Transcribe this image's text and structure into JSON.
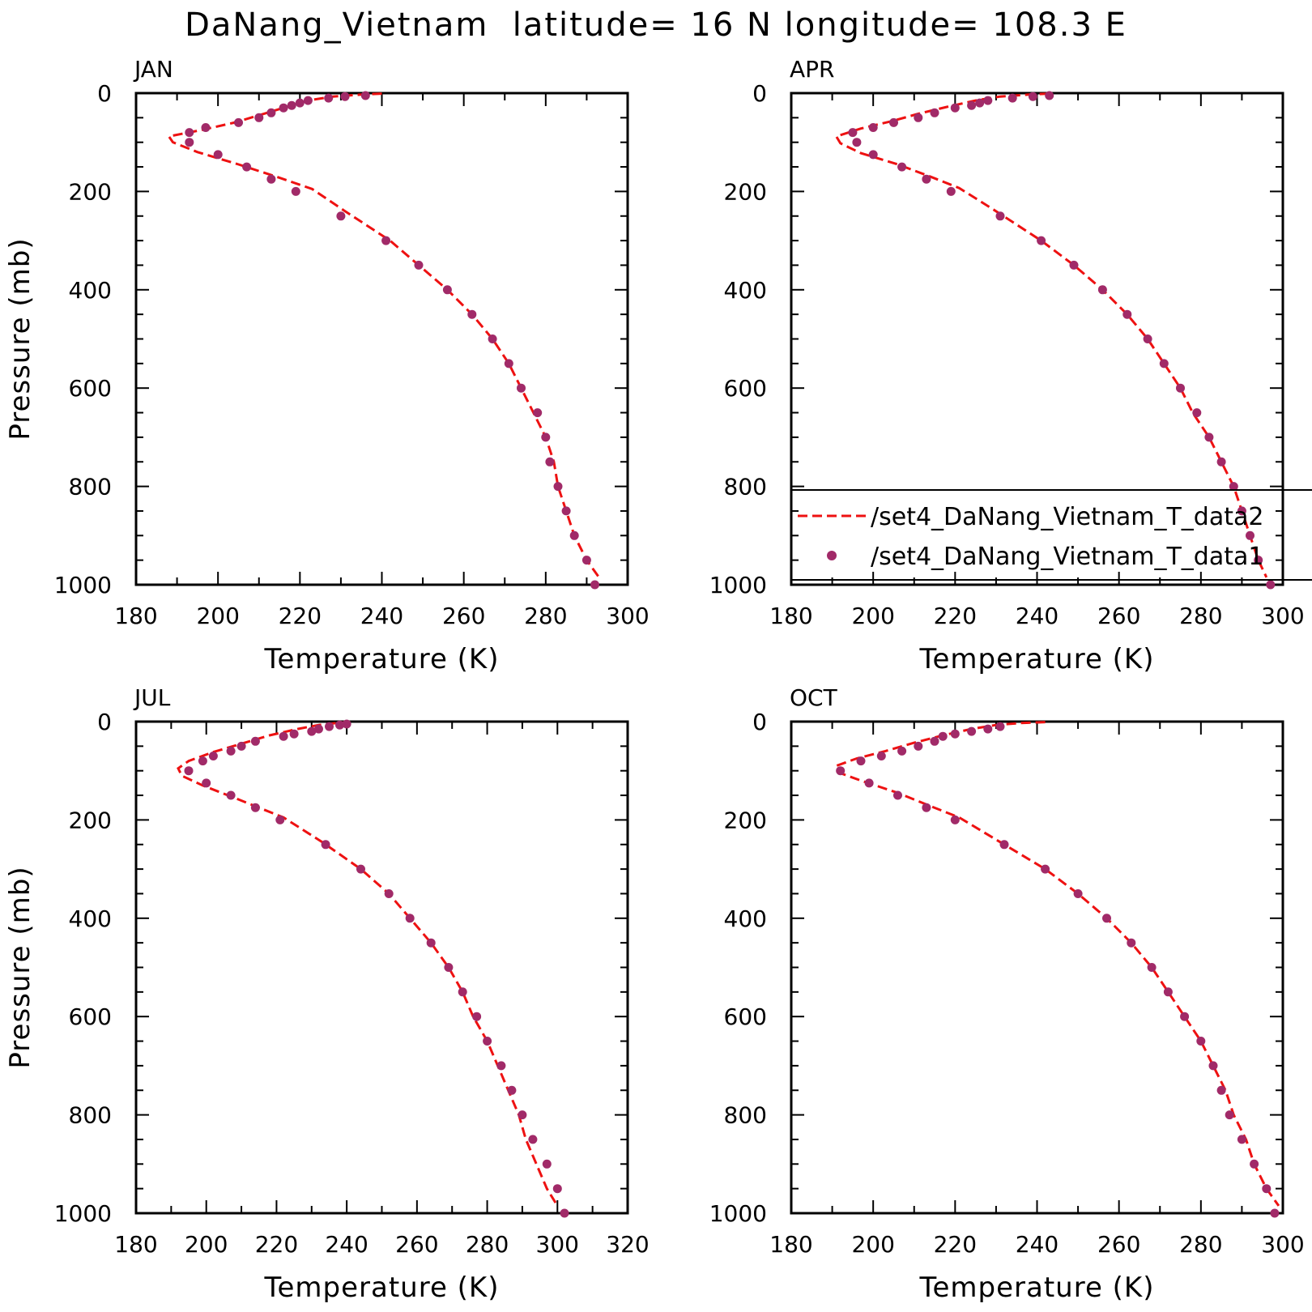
{
  "figure": {
    "title": "DaNang_Vietnam  latitude= 16 N longitude= 108.3 E",
    "colors": {
      "model_line": "#ee1111",
      "obs_marker": "#a12a68",
      "axes": "#000000"
    }
  },
  "legend": {
    "entries": [
      {
        "label": "/set4_DaNang_Vietnam_T_data2",
        "style": "dashed-line"
      },
      {
        "label": "/set4_DaNang_Vietnam_T_data1",
        "style": "marker"
      }
    ]
  },
  "chart_data": [
    {
      "type": "line",
      "panel": "JAN",
      "xlabel": "Temperature (K)",
      "ylabel": "Pressure (mb)",
      "xlim": [
        180,
        300
      ],
      "ylim": [
        1000,
        0
      ],
      "xticks": [
        180,
        200,
        220,
        240,
        260,
        280,
        300
      ],
      "yticks": [
        0,
        200,
        400,
        600,
        800,
        1000
      ],
      "legend": false,
      "series": [
        {
          "style": "dashed-line",
          "points": [
            [
              240,
              1
            ],
            [
              235,
              3
            ],
            [
              228,
              7
            ],
            [
              222,
              15
            ],
            [
              216,
              30
            ],
            [
              210,
              45
            ],
            [
              204,
              60
            ],
            [
              196,
              75
            ],
            [
              188,
              88
            ],
            [
              189,
              100
            ],
            [
              195,
              120
            ],
            [
              205,
              145
            ],
            [
              215,
              172
            ],
            [
              223,
              195
            ],
            [
              231,
              240
            ],
            [
              242,
              300
            ],
            [
              249,
              350
            ],
            [
              256,
              400
            ],
            [
              262,
              450
            ],
            [
              267,
              500
            ],
            [
              271,
              550
            ],
            [
              274,
              600
            ],
            [
              277,
              650
            ],
            [
              280,
              700
            ],
            [
              282,
              750
            ],
            [
              283,
              800
            ],
            [
              285,
              850
            ],
            [
              287,
              900
            ],
            [
              290,
              950
            ],
            [
              293,
              985
            ]
          ]
        },
        {
          "style": "marker",
          "points": [
            [
              236,
              5
            ],
            [
              231,
              7
            ],
            [
              227,
              10
            ],
            [
              222,
              15
            ],
            [
              220,
              20
            ],
            [
              218,
              25
            ],
            [
              216,
              30
            ],
            [
              213,
              40
            ],
            [
              210,
              50
            ],
            [
              205,
              60
            ],
            [
              197,
              70
            ],
            [
              193,
              80
            ],
            [
              193,
              100
            ],
            [
              200,
              125
            ],
            [
              207,
              150
            ],
            [
              213,
              175
            ],
            [
              219,
              200
            ],
            [
              230,
              250
            ],
            [
              241,
              300
            ],
            [
              249,
              350
            ],
            [
              256,
              400
            ],
            [
              262,
              450
            ],
            [
              267,
              500
            ],
            [
              271,
              550
            ],
            [
              274,
              600
            ],
            [
              278,
              650
            ],
            [
              280,
              700
            ],
            [
              281,
              750
            ],
            [
              283,
              800
            ],
            [
              285,
              850
            ],
            [
              287,
              900
            ],
            [
              290,
              950
            ],
            [
              292,
              1000
            ]
          ]
        }
      ]
    },
    {
      "type": "line",
      "panel": "APR",
      "xlabel": "Temperature (K)",
      "ylabel": "",
      "xlim": [
        180,
        300
      ],
      "ylim": [
        1000,
        0
      ],
      "xticks": [
        180,
        200,
        220,
        240,
        260,
        280,
        300
      ],
      "yticks": [
        0,
        200,
        400,
        600,
        800,
        1000
      ],
      "legend": true,
      "series": [
        {
          "style": "dashed-line",
          "points": [
            [
              243,
              1
            ],
            [
              238,
              3
            ],
            [
              231,
              7
            ],
            [
              225,
              15
            ],
            [
              218,
              28
            ],
            [
              211,
              42
            ],
            [
              205,
              56
            ],
            [
              197,
              72
            ],
            [
              191,
              88
            ],
            [
              192,
              102
            ],
            [
              197,
              122
            ],
            [
              206,
              145
            ],
            [
              214,
              170
            ],
            [
              221,
              193
            ],
            [
              229,
              235
            ],
            [
              241,
              300
            ],
            [
              249,
              350
            ],
            [
              256,
              400
            ],
            [
              262,
              450
            ],
            [
              267,
              500
            ],
            [
              271,
              550
            ],
            [
              275,
              600
            ],
            [
              278,
              650
            ],
            [
              282,
              700
            ],
            [
              285,
              750
            ],
            [
              288,
              800
            ],
            [
              290,
              850
            ],
            [
              292,
              900
            ],
            [
              294,
              950
            ],
            [
              296,
              985
            ]
          ]
        },
        {
          "style": "marker",
          "points": [
            [
              243,
              5
            ],
            [
              239,
              7
            ],
            [
              234,
              10
            ],
            [
              228,
              15
            ],
            [
              226,
              20
            ],
            [
              224,
              25
            ],
            [
              220,
              30
            ],
            [
              215,
              40
            ],
            [
              211,
              50
            ],
            [
              205,
              60
            ],
            [
              200,
              70
            ],
            [
              195,
              80
            ],
            [
              196,
              100
            ],
            [
              200,
              125
            ],
            [
              207,
              150
            ],
            [
              213,
              175
            ],
            [
              219,
              200
            ],
            [
              231,
              250
            ],
            [
              241,
              300
            ],
            [
              249,
              350
            ],
            [
              256,
              400
            ],
            [
              262,
              450
            ],
            [
              267,
              500
            ],
            [
              271,
              550
            ],
            [
              275,
              600
            ],
            [
              279,
              650
            ],
            [
              282,
              700
            ],
            [
              285,
              750
            ],
            [
              288,
              800
            ],
            [
              290,
              850
            ],
            [
              292,
              900
            ],
            [
              294,
              950
            ],
            [
              297,
              1000
            ]
          ]
        }
      ]
    },
    {
      "type": "line",
      "panel": "JUL",
      "xlabel": "Temperature (K)",
      "ylabel": "Pressure (mb)",
      "xlim": [
        180,
        320
      ],
      "ylim": [
        1000,
        0
      ],
      "xticks": [
        180,
        200,
        220,
        240,
        260,
        280,
        300,
        320
      ],
      "yticks": [
        0,
        200,
        400,
        600,
        800,
        1000
      ],
      "legend": false,
      "series": [
        {
          "style": "dashed-line",
          "points": [
            [
              241,
              1
            ],
            [
              237,
              3
            ],
            [
              232,
              7
            ],
            [
              226,
              15
            ],
            [
              218,
              28
            ],
            [
              210,
              45
            ],
            [
              202,
              62
            ],
            [
              195,
              80
            ],
            [
              192,
              95
            ],
            [
              193,
              110
            ],
            [
              199,
              130
            ],
            [
              208,
              155
            ],
            [
              216,
              178
            ],
            [
              222,
              195
            ],
            [
              233,
              245
            ],
            [
              244,
              300
            ],
            [
              252,
              350
            ],
            [
              258,
              400
            ],
            [
              264,
              450
            ],
            [
              269,
              500
            ],
            [
              273,
              550
            ],
            [
              276,
              600
            ],
            [
              280,
              650
            ],
            [
              283,
              700
            ],
            [
              286,
              750
            ],
            [
              289,
              800
            ],
            [
              291,
              850
            ],
            [
              294,
              900
            ],
            [
              297,
              950
            ],
            [
              300,
              985
            ]
          ]
        },
        {
          "style": "marker",
          "points": [
            [
              240,
              5
            ],
            [
              238,
              7
            ],
            [
              235,
              10
            ],
            [
              232,
              15
            ],
            [
              230,
              20
            ],
            [
              225,
              25
            ],
            [
              222,
              30
            ],
            [
              214,
              40
            ],
            [
              210,
              50
            ],
            [
              207,
              60
            ],
            [
              202,
              70
            ],
            [
              199,
              80
            ],
            [
              195,
              100
            ],
            [
              200,
              125
            ],
            [
              207,
              150
            ],
            [
              214,
              175
            ],
            [
              221,
              200
            ],
            [
              234,
              250
            ],
            [
              244,
              300
            ],
            [
              252,
              350
            ],
            [
              258,
              400
            ],
            [
              264,
              450
            ],
            [
              269,
              500
            ],
            [
              273,
              550
            ],
            [
              277,
              600
            ],
            [
              280,
              650
            ],
            [
              284,
              700
            ],
            [
              287,
              750
            ],
            [
              290,
              800
            ],
            [
              293,
              850
            ],
            [
              297,
              900
            ],
            [
              300,
              950
            ],
            [
              302,
              1000
            ]
          ]
        }
      ]
    },
    {
      "type": "line",
      "panel": "OCT",
      "xlabel": "Temperature (K)",
      "ylabel": "",
      "xlim": [
        180,
        300
      ],
      "ylim": [
        1000,
        0
      ],
      "xticks": [
        180,
        200,
        220,
        240,
        260,
        280,
        300
      ],
      "yticks": [
        0,
        200,
        400,
        600,
        800,
        1000
      ],
      "legend": false,
      "series": [
        {
          "style": "dashed-line",
          "points": [
            [
              242,
              1
            ],
            [
              236,
              3
            ],
            [
              230,
              7
            ],
            [
              224,
              15
            ],
            [
              217,
              28
            ],
            [
              210,
              43
            ],
            [
              203,
              60
            ],
            [
              196,
              75
            ],
            [
              191,
              90
            ],
            [
              192,
              105
            ],
            [
              197,
              120
            ],
            [
              206,
              145
            ],
            [
              214,
              172
            ],
            [
              221,
              195
            ],
            [
              230,
              240
            ],
            [
              242,
              300
            ],
            [
              250,
              350
            ],
            [
              257,
              400
            ],
            [
              263,
              450
            ],
            [
              268,
              500
            ],
            [
              272,
              550
            ],
            [
              276,
              600
            ],
            [
              280,
              650
            ],
            [
              283,
              700
            ],
            [
              286,
              750
            ],
            [
              288,
              800
            ],
            [
              291,
              850
            ],
            [
              293,
              900
            ],
            [
              296,
              950
            ],
            [
              299,
              985
            ]
          ]
        },
        {
          "style": "marker",
          "points": [
            [
              231,
              10
            ],
            [
              228,
              15
            ],
            [
              224,
              20
            ],
            [
              220,
              25
            ],
            [
              217,
              30
            ],
            [
              215,
              40
            ],
            [
              211,
              50
            ],
            [
              207,
              60
            ],
            [
              202,
              70
            ],
            [
              197,
              80
            ],
            [
              192,
              100
            ],
            [
              199,
              125
            ],
            [
              206,
              150
            ],
            [
              213,
              175
            ],
            [
              220,
              200
            ],
            [
              232,
              250
            ],
            [
              242,
              300
            ],
            [
              250,
              350
            ],
            [
              257,
              400
            ],
            [
              263,
              450
            ],
            [
              268,
              500
            ],
            [
              272,
              550
            ],
            [
              276,
              600
            ],
            [
              280,
              650
            ],
            [
              283,
              700
            ],
            [
              285,
              750
            ],
            [
              287,
              800
            ],
            [
              290,
              850
            ],
            [
              293,
              900
            ],
            [
              296,
              950
            ],
            [
              298,
              1000
            ]
          ]
        }
      ]
    }
  ]
}
